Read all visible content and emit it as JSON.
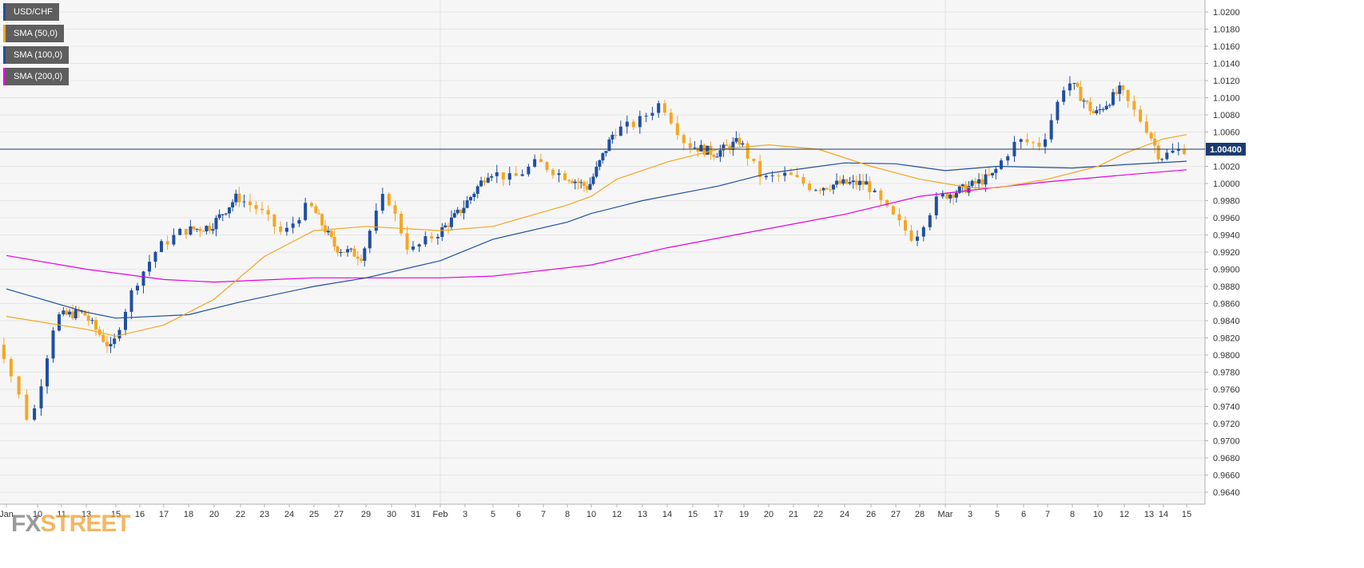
{
  "chart_data": {
    "type": "candlestick",
    "symbol": "USD/CHF",
    "legend": [
      {
        "label": "USD/CHF",
        "color": "#1f4fa0"
      },
      {
        "label": "SMA (50,0)",
        "color": "#f5a623"
      },
      {
        "label": "SMA (100,0)",
        "color": "#1f4fa0"
      },
      {
        "label": "SMA (200,0)",
        "color": "#e400e4"
      }
    ],
    "ylim": [
      0.963,
      1.021
    ],
    "y_ticks": [
      "1.0200",
      "1.0180",
      "1.0160",
      "1.0140",
      "1.0120",
      "1.0100",
      "1.0080",
      "1.0060",
      "1.0040",
      "1.0020",
      "1.0000",
      "0.9980",
      "0.9960",
      "0.9940",
      "0.9920",
      "0.9900",
      "0.9880",
      "0.9860",
      "0.9840",
      "0.9820",
      "0.9800",
      "0.9780",
      "0.9760",
      "0.9740",
      "0.9720",
      "0.9700",
      "0.9680",
      "0.9660",
      "0.9640"
    ],
    "x_ticks": [
      "Jan",
      "10",
      "11",
      "13",
      "15",
      "16",
      "17",
      "18",
      "20",
      "22",
      "23",
      "24",
      "25",
      "27",
      "29",
      "30",
      "31",
      "Feb",
      "3",
      "5",
      "6",
      "7",
      "8",
      "10",
      "12",
      "13",
      "14",
      "15",
      "17",
      "19",
      "20",
      "21",
      "22",
      "24",
      "26",
      "27",
      "28",
      "Mar",
      "3",
      "5",
      "6",
      "7",
      "8",
      "10",
      "12",
      "13",
      "14",
      "15"
    ],
    "current_price": "1.00400",
    "current_price_value": 1.004,
    "candle_up_color": "#1f4fa0",
    "candle_down_color": "#f5a623",
    "key_points": [
      {
        "date": "Jan 9",
        "value": 0.9815
      },
      {
        "date": "Jan 10",
        "value": 0.9718
      },
      {
        "date": "Jan 11",
        "value": 0.9845
      },
      {
        "date": "Jan 13",
        "value": 0.985
      },
      {
        "date": "Jan 15",
        "value": 0.9805
      },
      {
        "date": "Jan 16",
        "value": 0.988
      },
      {
        "date": "Jan 17",
        "value": 0.9925
      },
      {
        "date": "Jan 18",
        "value": 0.9945
      },
      {
        "date": "Jan 20",
        "value": 0.995
      },
      {
        "date": "Jan 22",
        "value": 0.9985
      },
      {
        "date": "Jan 23",
        "value": 0.997
      },
      {
        "date": "Jan 24",
        "value": 0.994
      },
      {
        "date": "Jan 25",
        "value": 0.9975
      },
      {
        "date": "Jan 27",
        "value": 0.9925
      },
      {
        "date": "Jan 29",
        "value": 0.9915
      },
      {
        "date": "Jan 30",
        "value": 0.999
      },
      {
        "date": "Jan 31",
        "value": 0.992
      },
      {
        "date": "Feb 1",
        "value": 0.994
      },
      {
        "date": "Feb 3",
        "value": 0.997
      },
      {
        "date": "Feb 5",
        "value": 1.0015
      },
      {
        "date": "Feb 6",
        "value": 1.0005
      },
      {
        "date": "Feb 7",
        "value": 1.0025
      },
      {
        "date": "Feb 8",
        "value": 1.001
      },
      {
        "date": "Feb 10",
        "value": 0.9995
      },
      {
        "date": "Feb 12",
        "value": 1.006
      },
      {
        "date": "Feb 13",
        "value": 1.007
      },
      {
        "date": "Feb 14",
        "value": 1.0095
      },
      {
        "date": "Feb 15",
        "value": 1.0045
      },
      {
        "date": "Feb 17",
        "value": 1.0035
      },
      {
        "date": "Feb 19",
        "value": 1.005
      },
      {
        "date": "Feb 20",
        "value": 1.0005
      },
      {
        "date": "Feb 21",
        "value": 1.001
      },
      {
        "date": "Feb 22",
        "value": 0.9995
      },
      {
        "date": "Feb 24",
        "value": 1.0
      },
      {
        "date": "Feb 26",
        "value": 1.0
      },
      {
        "date": "Feb 27",
        "value": 0.9965
      },
      {
        "date": "Feb 28",
        "value": 0.9935
      },
      {
        "date": "Mar 1",
        "value": 0.9985
      },
      {
        "date": "Mar 3",
        "value": 0.9995
      },
      {
        "date": "Mar 5",
        "value": 1.001
      },
      {
        "date": "Mar 6",
        "value": 1.005
      },
      {
        "date": "Mar 7",
        "value": 1.0045
      },
      {
        "date": "Mar 8",
        "value": 1.012
      },
      {
        "date": "Mar 10",
        "value": 1.008
      },
      {
        "date": "Mar 12",
        "value": 1.011
      },
      {
        "date": "Mar 13",
        "value": 1.007
      },
      {
        "date": "Mar 14",
        "value": 1.003
      },
      {
        "date": "Mar 15",
        "value": 1.004
      }
    ],
    "sma50": [
      {
        "date": "Jan 9",
        "value": 0.9845
      },
      {
        "date": "Jan 13",
        "value": 0.983
      },
      {
        "date": "Jan 15",
        "value": 0.9822
      },
      {
        "date": "Jan 17",
        "value": 0.9835
      },
      {
        "date": "Jan 20",
        "value": 0.9865
      },
      {
        "date": "Jan 23",
        "value": 0.9915
      },
      {
        "date": "Jan 25",
        "value": 0.9945
      },
      {
        "date": "Jan 29",
        "value": 0.995
      },
      {
        "date": "Feb 1",
        "value": 0.9945
      },
      {
        "date": "Feb 5",
        "value": 0.995
      },
      {
        "date": "Feb 8",
        "value": 0.9975
      },
      {
        "date": "Feb 10",
        "value": 0.9985
      },
      {
        "date": "Feb 12",
        "value": 1.0005
      },
      {
        "date": "Feb 14",
        "value": 1.0025
      },
      {
        "date": "Feb 17",
        "value": 1.004
      },
      {
        "date": "Feb 20",
        "value": 1.0045
      },
      {
        "date": "Feb 22",
        "value": 1.004
      },
      {
        "date": "Feb 26",
        "value": 1.002
      },
      {
        "date": "Feb 28",
        "value": 1.0005
      },
      {
        "date": "Mar 3",
        "value": 0.9995
      },
      {
        "date": "Mar 5",
        "value": 0.9995
      },
      {
        "date": "Mar 7",
        "value": 1.0005
      },
      {
        "date": "Mar 10",
        "value": 1.002
      },
      {
        "date": "Mar 12",
        "value": 1.0035
      },
      {
        "date": "Mar 14",
        "value": 1.0052
      },
      {
        "date": "Mar 15",
        "value": 1.0057
      }
    ],
    "sma100": [
      {
        "date": "Jan 9",
        "value": 0.9877
      },
      {
        "date": "Jan 13",
        "value": 0.985
      },
      {
        "date": "Jan 15",
        "value": 0.9843
      },
      {
        "date": "Jan 18",
        "value": 0.9847
      },
      {
        "date": "Jan 22",
        "value": 0.9862
      },
      {
        "date": "Jan 25",
        "value": 0.988
      },
      {
        "date": "Jan 29",
        "value": 0.989
      },
      {
        "date": "Feb 1",
        "value": 0.991
      },
      {
        "date": "Feb 5",
        "value": 0.9935
      },
      {
        "date": "Feb 8",
        "value": 0.9955
      },
      {
        "date": "Feb 10",
        "value": 0.9965
      },
      {
        "date": "Feb 13",
        "value": 0.998
      },
      {
        "date": "Feb 17",
        "value": 0.9997
      },
      {
        "date": "Feb 20",
        "value": 1.0012
      },
      {
        "date": "Feb 24",
        "value": 1.0024
      },
      {
        "date": "Feb 27",
        "value": 1.0023
      },
      {
        "date": "Mar 1",
        "value": 1.0015
      },
      {
        "date": "Mar 5",
        "value": 1.002
      },
      {
        "date": "Mar 8",
        "value": 1.0018
      },
      {
        "date": "Mar 12",
        "value": 1.0022
      },
      {
        "date": "Mar 15",
        "value": 1.0026
      }
    ],
    "sma200": [
      {
        "date": "Jan 9",
        "value": 0.9916
      },
      {
        "date": "Jan 13",
        "value": 0.99
      },
      {
        "date": "Jan 17",
        "value": 0.9888
      },
      {
        "date": "Jan 20",
        "value": 0.9885
      },
      {
        "date": "Jan 25",
        "value": 0.989
      },
      {
        "date": "Feb 1",
        "value": 0.989
      },
      {
        "date": "Feb 5",
        "value": 0.9892
      },
      {
        "date": "Feb 10",
        "value": 0.9905
      },
      {
        "date": "Feb 14",
        "value": 0.9925
      },
      {
        "date": "Feb 19",
        "value": 0.9942
      },
      {
        "date": "Feb 24",
        "value": 0.9964
      },
      {
        "date": "Feb 28",
        "value": 0.9985
      },
      {
        "date": "Mar 3",
        "value": 0.9992
      },
      {
        "date": "Mar 7",
        "value": 1.0002
      },
      {
        "date": "Mar 12",
        "value": 1.001
      },
      {
        "date": "Mar 15",
        "value": 1.0016
      }
    ]
  },
  "logo": {
    "fx": "FX",
    "street": "STREET"
  }
}
